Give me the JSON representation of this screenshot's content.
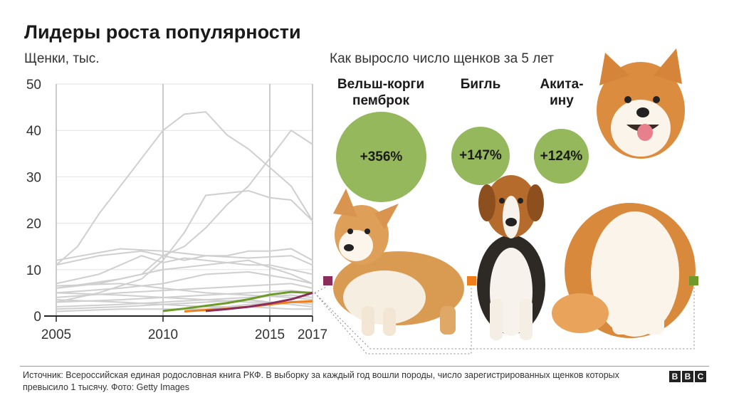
{
  "title": "Лидеры роста популярности",
  "subtitle": "Щенки, тыс.",
  "right_subtitle": "Как выросло число щенков за 5 лет",
  "breeds": [
    {
      "name_line1": "Вельш-корги",
      "name_line2": "пемброк",
      "growth": "+356%",
      "marker_color": "#8b2d5c"
    },
    {
      "name_line1": "Бигль",
      "name_line2": "",
      "growth": "+147%",
      "marker_color": "#f07e1a"
    },
    {
      "name_line1": "Акита-",
      "name_line2": "ину",
      "growth": "+124%",
      "marker_color": "#6e9a2a"
    }
  ],
  "source": "Источник: Всероссийская единая родословная книга РКФ. В выборку за каждый год вошли породы, число зарегистрированных щенков которых превысило 1 тысячу. Фото: Getty Images",
  "logo": [
    "B",
    "B",
    "C"
  ],
  "chart_data": {
    "type": "line",
    "title": "Лидеры роста популярности",
    "ylabel": "Щенки, тыс.",
    "xlabel": "",
    "xlim": [
      2005,
      2017
    ],
    "ylim": [
      0,
      50
    ],
    "xticks": [
      2005,
      2010,
      2015,
      2017
    ],
    "yticks": [
      0,
      10,
      20,
      30,
      40,
      50
    ],
    "vertical_gridlines": [
      2005,
      2010,
      2015,
      2017
    ],
    "background_series_color": "#cfcfcf",
    "background_series": [
      {
        "x": [
          2005,
          2006,
          2007,
          2008,
          2009,
          2010,
          2011,
          2012,
          2013,
          2014,
          2015,
          2016,
          2017
        ],
        "y": [
          11,
          15,
          22,
          28,
          34,
          40,
          43.5,
          44,
          39,
          36,
          32,
          28,
          20.5
        ]
      },
      {
        "x": [
          2005,
          2007,
          2009,
          2010,
          2011,
          2012,
          2013,
          2014,
          2015,
          2016,
          2017
        ],
        "y": [
          6,
          7,
          9,
          13,
          15,
          19,
          24,
          28,
          34,
          40,
          37
        ]
      },
      {
        "x": [
          2005,
          2007,
          2009,
          2010,
          2011,
          2012,
          2013,
          2014,
          2015,
          2016,
          2017
        ],
        "y": [
          3,
          5,
          8,
          12,
          18,
          26,
          26.5,
          27,
          25.5,
          25,
          20.5
        ]
      },
      {
        "x": [
          2005,
          2007,
          2009,
          2010,
          2011,
          2012,
          2013,
          2014,
          2015,
          2016,
          2017
        ],
        "y": [
          11,
          13,
          14,
          13,
          12,
          13,
          13,
          14,
          14,
          14.5,
          12
        ]
      },
      {
        "x": [
          2005,
          2007,
          2009,
          2010,
          2011,
          2012,
          2013,
          2014,
          2015,
          2016,
          2017
        ],
        "y": [
          7,
          9,
          13,
          11.5,
          12.5,
          12,
          11.5,
          11,
          11,
          10,
          9
        ]
      },
      {
        "x": [
          2005,
          2008,
          2010,
          2012,
          2014,
          2016,
          2017
        ],
        "y": [
          12,
          14.5,
          14,
          13,
          12.5,
          13,
          11
        ]
      },
      {
        "x": [
          2005,
          2008,
          2010,
          2012,
          2014,
          2016,
          2017
        ],
        "y": [
          6,
          8,
          10,
          11,
          12,
          9,
          7
        ]
      },
      {
        "x": [
          2005,
          2008,
          2010,
          2012,
          2014,
          2016,
          2017
        ],
        "y": [
          5,
          6,
          7,
          9,
          9.5,
          8,
          7
        ]
      },
      {
        "x": [
          2005,
          2008,
          2010,
          2012,
          2014,
          2016,
          2017
        ],
        "y": [
          4,
          5,
          5.5,
          6,
          6.5,
          7,
          6
        ]
      },
      {
        "x": [
          2005,
          2008,
          2010,
          2012,
          2014,
          2016,
          2017
        ],
        "y": [
          6.5,
          7,
          6,
          5,
          4.5,
          4,
          3.5
        ]
      },
      {
        "x": [
          2005,
          2008,
          2010,
          2012,
          2014,
          2016,
          2017
        ],
        "y": [
          3,
          3.5,
          4,
          4.5,
          5,
          5.5,
          5
        ]
      },
      {
        "x": [
          2005,
          2008,
          2010,
          2012,
          2014,
          2016,
          2017
        ],
        "y": [
          2,
          2.5,
          3,
          3.5,
          4,
          4.5,
          4
        ]
      },
      {
        "x": [
          2005,
          2008,
          2010,
          2012,
          2014,
          2016,
          2017
        ],
        "y": [
          5,
          4.5,
          4,
          3.5,
          3,
          3,
          2.5
        ]
      },
      {
        "x": [
          2005,
          2008,
          2010,
          2012,
          2014,
          2016,
          2017
        ],
        "y": [
          1.5,
          2,
          2.5,
          2,
          2,
          1.5,
          1.5
        ]
      },
      {
        "x": [
          2005,
          2008,
          2010,
          2012,
          2014,
          2016,
          2017
        ],
        "y": [
          3.5,
          3,
          2.5,
          3,
          3.5,
          2.5,
          2
        ]
      },
      {
        "x": [
          2005,
          2008,
          2010,
          2012,
          2014,
          2016,
          2017
        ],
        "y": [
          1,
          1.5,
          1.5,
          1.5,
          2.5,
          3,
          3
        ]
      }
    ],
    "series": [
      {
        "name": "Акита-ину",
        "color": "#6e9a2a",
        "x": [
          2010,
          2011,
          2012,
          2013,
          2014,
          2015,
          2016,
          2017
        ],
        "y": [
          1.1,
          1.6,
          2.2,
          2.8,
          3.6,
          4.6,
          5.2,
          5.0
        ]
      },
      {
        "name": "Бигль",
        "color": "#f07e1a",
        "x": [
          2011,
          2012,
          2013,
          2014,
          2015,
          2016,
          2017
        ],
        "y": [
          1.0,
          1.3,
          1.6,
          2.0,
          2.5,
          3.0,
          3.2
        ]
      },
      {
        "name": "Вельш-корги пемброк",
        "color": "#8b2d5c",
        "x": [
          2012,
          2013,
          2014,
          2015,
          2016,
          2017
        ],
        "y": [
          1.1,
          1.5,
          2.0,
          2.7,
          3.6,
          5.0
        ]
      }
    ]
  }
}
